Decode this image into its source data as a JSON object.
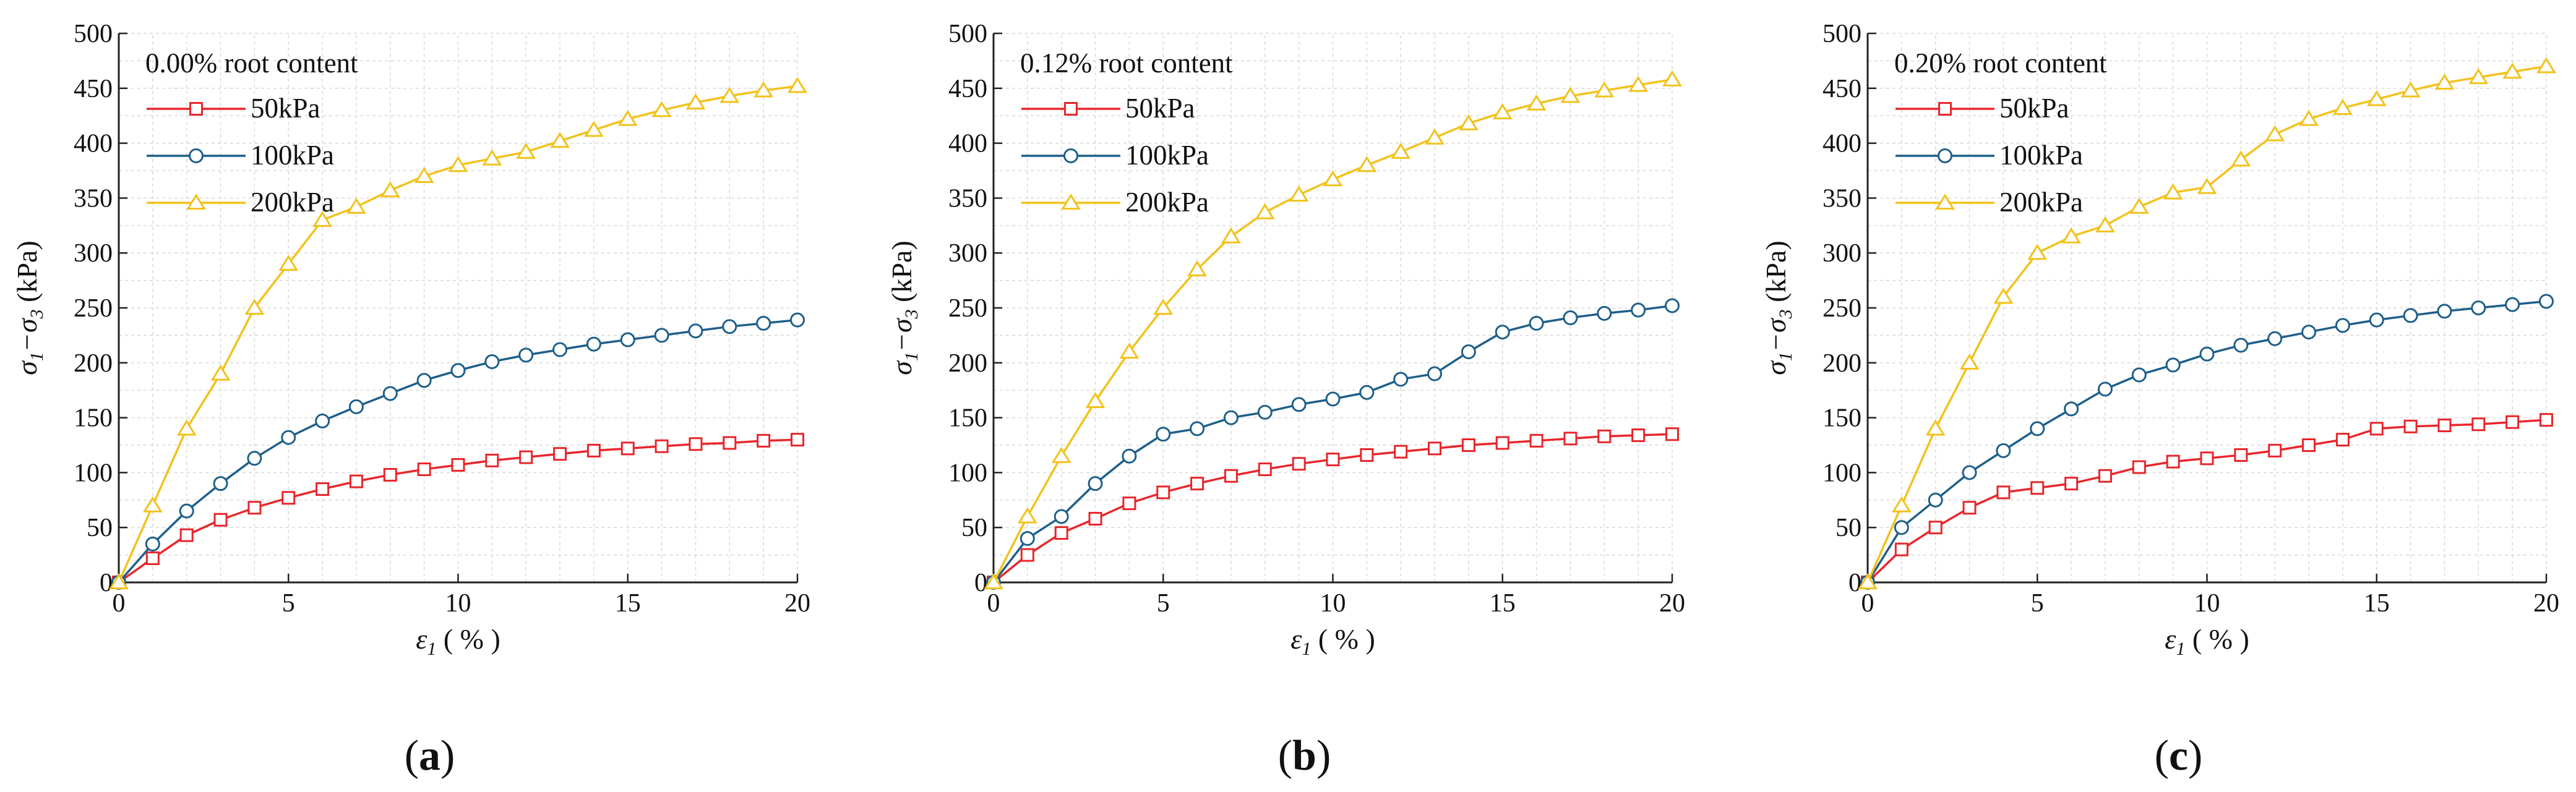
{
  "figure": {
    "subfigure_labels": [
      "a",
      "b",
      "c"
    ]
  },
  "chart_data": [
    {
      "type": "line",
      "panel": "a",
      "title": "0.00% root content",
      "xlabel_symbol": "ε",
      "xlabel_sub": "1",
      "xlabel_unit": "( % )",
      "ylabel_parts": [
        "σ",
        "1",
        "−σ",
        "3",
        " (kPa)"
      ],
      "xlim": [
        0,
        20
      ],
      "ylim": [
        0,
        500
      ],
      "xticks": [
        0,
        5,
        10,
        15,
        20
      ],
      "yticks": [
        0,
        50,
        100,
        150,
        200,
        250,
        300,
        350,
        400,
        450,
        500
      ],
      "grid": true,
      "legend_position": "top-left",
      "x": [
        0,
        1,
        2,
        3,
        4,
        5,
        6,
        7,
        8,
        9,
        10,
        11,
        12,
        13,
        14,
        15,
        16,
        17,
        18,
        19,
        20
      ],
      "series": [
        {
          "name": "50kPa",
          "marker": "square",
          "color": "#e8262b",
          "values": [
            0,
            22,
            43,
            57,
            68,
            77,
            85,
            92,
            98,
            103,
            107,
            111,
            114,
            117,
            120,
            122,
            124,
            126,
            127,
            129,
            130
          ]
        },
        {
          "name": "100kPa",
          "marker": "circle",
          "color": "#1d5f8a",
          "values": [
            0,
            35,
            65,
            90,
            113,
            132,
            147,
            160,
            172,
            184,
            193,
            201,
            207,
            212,
            217,
            221,
            225,
            229,
            233,
            236,
            239
          ]
        },
        {
          "name": "200kPa",
          "marker": "triangle",
          "color": "#f2c21b",
          "values": [
            0,
            70,
            140,
            190,
            250,
            290,
            330,
            342,
            357,
            370,
            380,
            386,
            392,
            402,
            412,
            422,
            430,
            437,
            443,
            448,
            452
          ]
        }
      ]
    },
    {
      "type": "line",
      "panel": "b",
      "title": "0.12% root content",
      "xlabel_symbol": "ε",
      "xlabel_sub": "1",
      "xlabel_unit": "( % )",
      "ylabel_parts": [
        "σ",
        "1",
        "−σ",
        "3",
        " (kPa)"
      ],
      "xlim": [
        0,
        20
      ],
      "ylim": [
        0,
        500
      ],
      "xticks": [
        0,
        5,
        10,
        15,
        20
      ],
      "yticks": [
        0,
        50,
        100,
        150,
        200,
        250,
        300,
        350,
        400,
        450,
        500
      ],
      "grid": true,
      "legend_position": "top-left",
      "x": [
        0,
        1,
        2,
        3,
        4,
        5,
        6,
        7,
        8,
        9,
        10,
        11,
        12,
        13,
        14,
        15,
        16,
        17,
        18,
        19,
        20
      ],
      "series": [
        {
          "name": "50kPa",
          "marker": "square",
          "color": "#e8262b",
          "values": [
            0,
            25,
            45,
            58,
            72,
            82,
            90,
            97,
            103,
            108,
            112,
            116,
            119,
            122,
            125,
            127,
            129,
            131,
            133,
            134,
            135
          ]
        },
        {
          "name": "100kPa",
          "marker": "circle",
          "color": "#1d5f8a",
          "values": [
            0,
            40,
            60,
            90,
            115,
            135,
            140,
            150,
            155,
            162,
            167,
            173,
            185,
            190,
            210,
            228,
            236,
            241,
            245,
            248,
            252
          ]
        },
        {
          "name": "200kPa",
          "marker": "triangle",
          "color": "#f2c21b",
          "values": [
            0,
            60,
            115,
            165,
            210,
            250,
            285,
            315,
            337,
            353,
            367,
            380,
            392,
            405,
            418,
            428,
            436,
            443,
            448,
            453,
            458
          ]
        }
      ]
    },
    {
      "type": "line",
      "panel": "c",
      "title": "0.20% root content",
      "xlabel_symbol": "ε",
      "xlabel_sub": "1",
      "xlabel_unit": "( % )",
      "ylabel_parts": [
        "σ",
        "1",
        "−σ",
        "3",
        " (kPa)"
      ],
      "xlim": [
        0,
        20
      ],
      "ylim": [
        0,
        500
      ],
      "xticks": [
        0,
        5,
        10,
        15,
        20
      ],
      "yticks": [
        0,
        50,
        100,
        150,
        200,
        250,
        300,
        350,
        400,
        450,
        500
      ],
      "grid": true,
      "legend_position": "top-left",
      "x": [
        0,
        1,
        2,
        3,
        4,
        5,
        6,
        7,
        8,
        9,
        10,
        11,
        12,
        13,
        14,
        15,
        16,
        17,
        18,
        19,
        20
      ],
      "series": [
        {
          "name": "50kPa",
          "marker": "square",
          "color": "#e8262b",
          "values": [
            0,
            30,
            50,
            68,
            82,
            86,
            90,
            97,
            105,
            110,
            113,
            116,
            120,
            125,
            130,
            140,
            142,
            143,
            144,
            146,
            148
          ]
        },
        {
          "name": "100kPa",
          "marker": "circle",
          "color": "#1d5f8a",
          "values": [
            0,
            50,
            75,
            100,
            120,
            140,
            158,
            176,
            189,
            198,
            208,
            216,
            222,
            228,
            234,
            239,
            243,
            247,
            250,
            253,
            256
          ]
        },
        {
          "name": "200kPa",
          "marker": "triangle",
          "color": "#f2c21b",
          "values": [
            0,
            70,
            140,
            200,
            260,
            300,
            315,
            325,
            342,
            355,
            360,
            385,
            408,
            422,
            432,
            440,
            448,
            455,
            460,
            465,
            470
          ]
        }
      ]
    }
  ]
}
